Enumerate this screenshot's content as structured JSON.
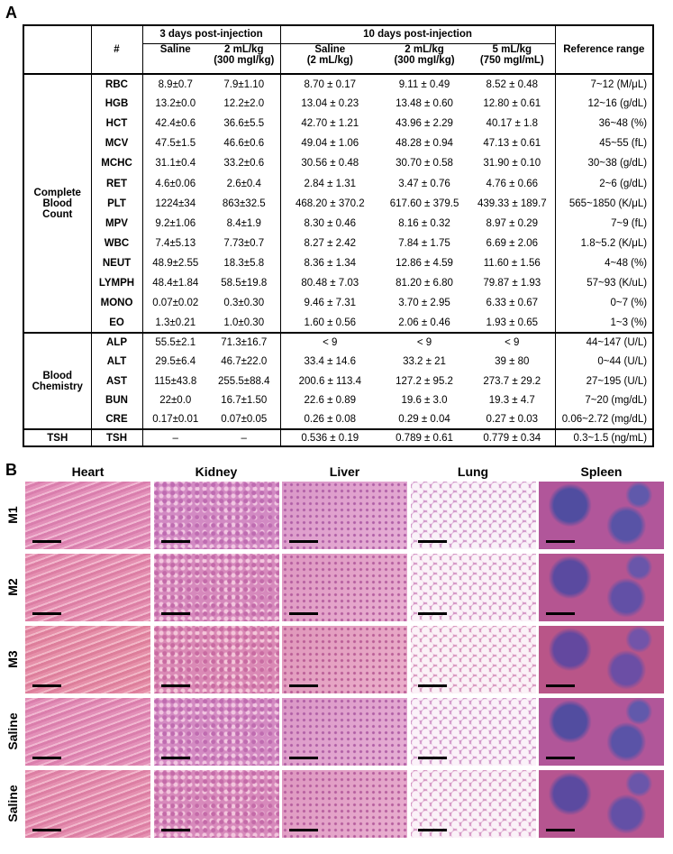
{
  "panel_a": {
    "label": "A",
    "header": {
      "index": "#",
      "day3": "3 days post-injection",
      "day10": "10 days post-injection",
      "reference": "Reference range",
      "columns": [
        [
          "Saline"
        ],
        [
          "2 mL/kg",
          "(300 mgI/kg)"
        ],
        [
          "Saline",
          "(2 mL/kg)"
        ],
        [
          "2 mL/kg",
          "(300 mgI/kg)"
        ],
        [
          "5 mL/kg",
          "(750 mgI/mL)"
        ]
      ]
    },
    "groups": [
      {
        "name": [
          "Complete",
          "Blood",
          "Count"
        ],
        "rows": [
          [
            "RBC",
            "8.9±0.7",
            "7.9±1.10",
            "8.70 ± 0.17",
            "9.11 ± 0.49",
            "8.52 ± 0.48",
            "7~12 (M/μL)"
          ],
          [
            "HGB",
            "13.2±0.0",
            "12.2±2.0",
            "13.04 ± 0.23",
            "13.48 ± 0.60",
            "12.80 ± 0.61",
            "12~16 (g/dL)"
          ],
          [
            "HCT",
            "42.4±0.6",
            "36.6±5.5",
            "42.70 ± 1.21",
            "43.96 ± 2.29",
            "40.17 ± 1.8",
            "36~48 (%)"
          ],
          [
            "MCV",
            "47.5±1.5",
            "46.6±0.6",
            "49.04 ± 1.06",
            "48.28 ± 0.94",
            "47.13 ± 0.61",
            "45~55 (fL)"
          ],
          [
            "MCHC",
            "31.1±0.4",
            "33.2±0.6",
            "30.56 ± 0.48",
            "30.70 ± 0.58",
            "31.90 ± 0.10",
            "30~38 (g/dL)"
          ],
          [
            "RET",
            "4.6±0.06",
            "2.6±0.4",
            "2.84 ± 1.31",
            "3.47 ± 0.76",
            "4.76 ± 0.66",
            "2~6 (g/dL)"
          ],
          [
            "PLT",
            "1224±34",
            "863±32.5",
            "468.20 ± 370.2",
            "617.60 ± 379.5",
            "439.33 ± 189.7",
            "565~1850 (K/μL)"
          ],
          [
            "MPV",
            "9.2±1.06",
            "8.4±1.9",
            "8.30 ± 0.46",
            "8.16 ± 0.32",
            "8.97 ± 0.29",
            "7~9 (fL)"
          ],
          [
            "WBC",
            "7.4±5.13",
            "7.73±0.7",
            "8.27 ± 2.42",
            "7.84 ± 1.75",
            "6.69 ± 2.06",
            "1.8~5.2 (K/μL)"
          ],
          [
            "NEUT",
            "48.9±2.55",
            "18.3±5.8",
            "8.36 ± 1.34",
            "12.86 ± 4.59",
            "11.60 ± 1.56",
            "4~48 (%)"
          ],
          [
            "LYMPH",
            "48.4±1.84",
            "58.5±19.8",
            "80.48 ± 7.03",
            "81.20 ± 6.80",
            "79.87 ± 1.93",
            "57~93 (K/uL)"
          ],
          [
            "MONO",
            "0.07±0.02",
            "0.3±0.30",
            "9.46 ± 7.31",
            "3.70 ± 2.95",
            "6.33 ± 0.67",
            "0~7 (%)"
          ],
          [
            "EO",
            "1.3±0.21",
            "1.0±0.30",
            "1.60 ± 0.56",
            "2.06 ± 0.46",
            "1.93 ± 0.65",
            "1~3 (%)"
          ]
        ]
      },
      {
        "name": [
          "Blood",
          "Chemistry"
        ],
        "rows": [
          [
            "ALP",
            "55.5±2.1",
            "71.3±16.7",
            "< 9",
            "< 9",
            "< 9",
            "44~147 (U/L)"
          ],
          [
            "ALT",
            "29.5±6.4",
            "46.7±22.0",
            "33.4 ± 14.6",
            "33.2 ± 21",
            "39 ± 80",
            "0~44 (U/L)"
          ],
          [
            "AST",
            "115±43.8",
            "255.5±88.4",
            "200.6 ± 113.4",
            "127.2 ± 95.2",
            "273.7 ± 29.2",
            "27~195 (U/L)"
          ],
          [
            "BUN",
            "22±0.0",
            "16.7±1.50",
            "22.6 ± 0.89",
            "19.6 ± 3.0",
            "19.3 ± 4.7",
            "7~20 (mg/dL)"
          ],
          [
            "CRE",
            "0.17±0.01",
            "0.07±0.05",
            "0.26 ± 0.08",
            "0.29 ± 0.04",
            "0.27 ± 0.03",
            "0.06~2.72 (mg/dL)"
          ]
        ]
      },
      {
        "name": [
          "TSH"
        ],
        "rows": [
          [
            "TSH",
            "–",
            "–",
            "0.536 ± 0.19",
            "0.789 ± 0.61",
            "0.779 ± 0.34",
            "0.3~1.5 (ng/mL)"
          ]
        ]
      }
    ]
  },
  "panel_b": {
    "label": "B",
    "columns": [
      "Heart",
      "Kidney",
      "Liver",
      "Lung",
      "Spleen"
    ],
    "rows": [
      "M1",
      "M2",
      "M3",
      "Saline",
      "Saline"
    ]
  }
}
